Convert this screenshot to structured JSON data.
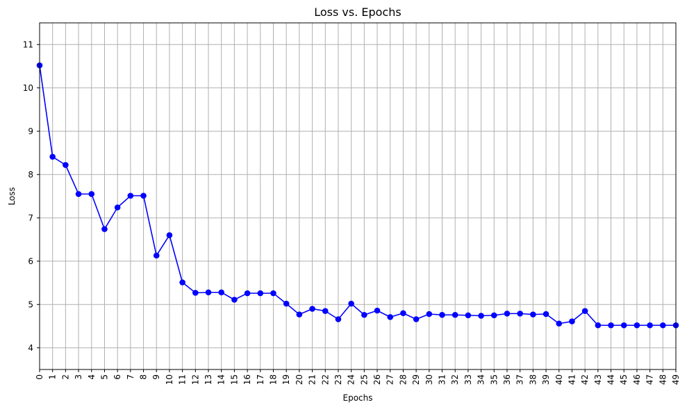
{
  "chart_data": {
    "type": "line",
    "title": "Loss vs. Epochs",
    "xlabel": "Epochs",
    "ylabel": "Loss",
    "x": [
      0,
      1,
      2,
      3,
      4,
      5,
      6,
      7,
      8,
      9,
      10,
      11,
      12,
      13,
      14,
      15,
      16,
      17,
      18,
      19,
      20,
      21,
      22,
      23,
      24,
      25,
      26,
      27,
      28,
      29,
      30,
      31,
      32,
      33,
      34,
      35,
      36,
      37,
      38,
      39,
      40,
      41,
      42,
      43,
      44,
      45,
      46,
      47,
      48,
      49
    ],
    "values": [
      10.52,
      8.41,
      8.22,
      7.55,
      7.55,
      6.74,
      7.24,
      7.51,
      7.51,
      6.13,
      6.6,
      5.51,
      5.27,
      5.28,
      5.28,
      5.11,
      5.26,
      5.26,
      5.26,
      5.02,
      4.77,
      4.9,
      4.85,
      4.66,
      5.02,
      4.76,
      4.86,
      4.71,
      4.8,
      4.66,
      4.78,
      4.76,
      4.76,
      4.75,
      4.74,
      4.75,
      4.79,
      4.79,
      4.77,
      4.78,
      4.56,
      4.61,
      4.85,
      4.52,
      4.52,
      4.52,
      4.52,
      4.52,
      4.52,
      4.52
    ],
    "xlim": [
      0,
      49
    ],
    "ylim": [
      3.5,
      11.5
    ],
    "yticks": [
      4,
      5,
      6,
      7,
      8,
      9,
      10,
      11
    ],
    "grid": true,
    "line_color": "#0000ff",
    "marker": "circle"
  }
}
